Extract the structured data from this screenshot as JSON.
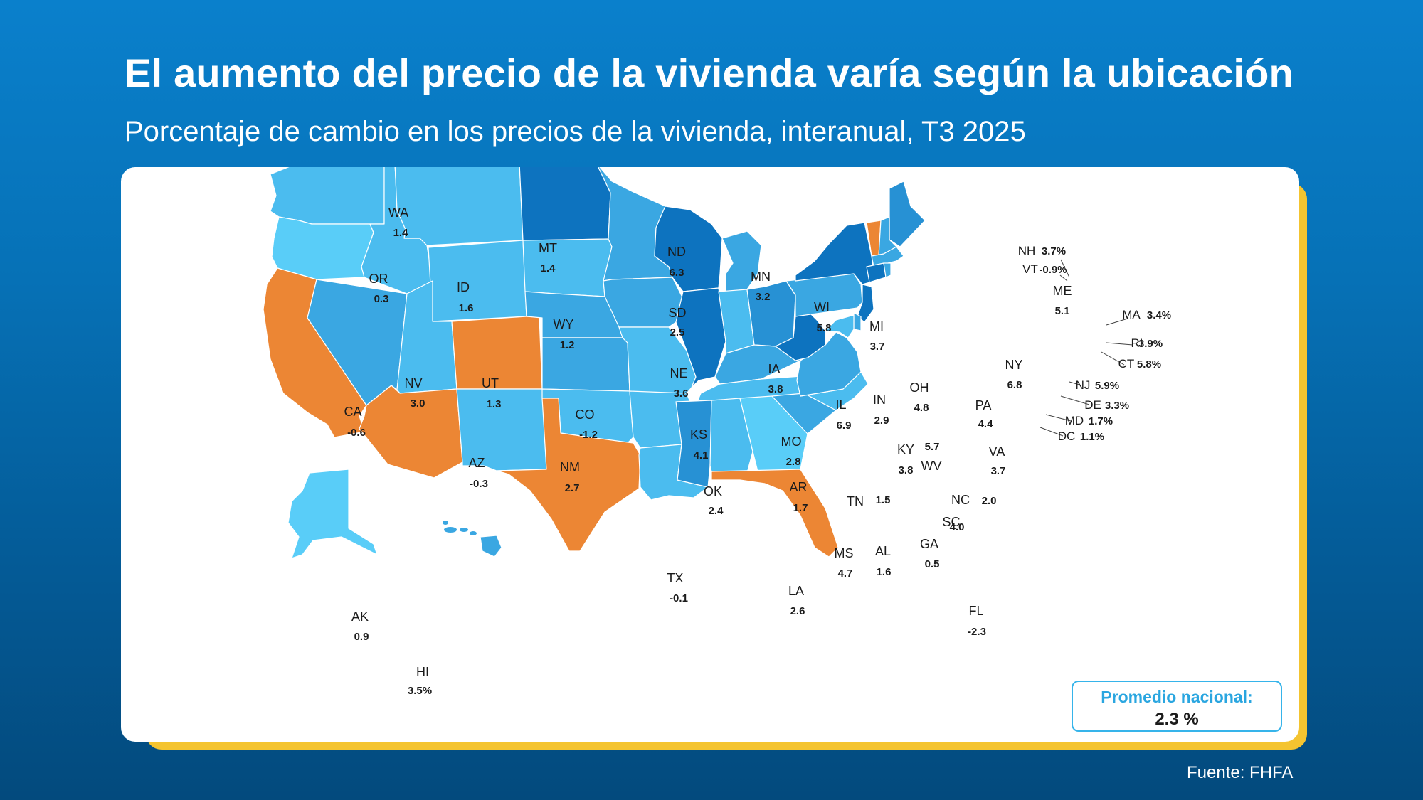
{
  "title": "El aumento del precio de la vivienda varía según la ubicación",
  "subtitle": "Porcentaje de cambio en los precios de la vivienda, interanual, T3 2025",
  "national_average": {
    "label": "Promedio nacional:",
    "value": "2.3 %"
  },
  "source": "Fuente: FHFA",
  "colors": {
    "negative": "#ec8634",
    "tier_0_1": "#59cdf8",
    "tier_1_3": "#4bbcef",
    "tier_3_4_5": "#3aa7e2",
    "tier_4_5_5_5": "#2791d4",
    "tier_5_5_plus": "#0d73bf"
  },
  "chart_data": {
    "type": "choropleth",
    "metric": "Porcentaje de cambio en los precios de la vivienda, interanual, T3 2025",
    "states": [
      {
        "abbr": "WA",
        "value": "1.4"
      },
      {
        "abbr": "OR",
        "value": "0.3"
      },
      {
        "abbr": "CA",
        "value": "-0.6"
      },
      {
        "abbr": "NV",
        "value": "3.0"
      },
      {
        "abbr": "ID",
        "value": "1.6"
      },
      {
        "abbr": "MT",
        "value": "1.4"
      },
      {
        "abbr": "WY",
        "value": "1.2"
      },
      {
        "abbr": "UT",
        "value": "1.3"
      },
      {
        "abbr": "AZ",
        "value": "-0.3"
      },
      {
        "abbr": "CO",
        "value": "-1.2"
      },
      {
        "abbr": "NM",
        "value": "2.7"
      },
      {
        "abbr": "ND",
        "value": "6.3"
      },
      {
        "abbr": "SD",
        "value": "2.5"
      },
      {
        "abbr": "NE",
        "value": "3.6"
      },
      {
        "abbr": "KS",
        "value": "4.1"
      },
      {
        "abbr": "OK",
        "value": "2.4"
      },
      {
        "abbr": "TX",
        "value": "-0.1"
      },
      {
        "abbr": "MN",
        "value": "3.2"
      },
      {
        "abbr": "IA",
        "value": "3.8"
      },
      {
        "abbr": "MO",
        "value": "2.8"
      },
      {
        "abbr": "AR",
        "value": "1.7"
      },
      {
        "abbr": "LA",
        "value": "2.6"
      },
      {
        "abbr": "WI",
        "value": "5.8"
      },
      {
        "abbr": "IL",
        "value": "6.9"
      },
      {
        "abbr": "MI",
        "value": "3.7"
      },
      {
        "abbr": "IN",
        "value": "2.9"
      },
      {
        "abbr": "OH",
        "value": "4.8"
      },
      {
        "abbr": "KY",
        "value": "3.8"
      },
      {
        "abbr": "TN",
        "value": "1.5"
      },
      {
        "abbr": "MS",
        "value": "4.7"
      },
      {
        "abbr": "AL",
        "value": "1.6"
      },
      {
        "abbr": "GA",
        "value": "0.5"
      },
      {
        "abbr": "FL",
        "value": "-2.3"
      },
      {
        "abbr": "SC",
        "value": "4.0"
      },
      {
        "abbr": "NC",
        "value": "2.0"
      },
      {
        "abbr": "VA",
        "value": "3.7"
      },
      {
        "abbr": "WV",
        "value": "5.7"
      },
      {
        "abbr": "PA",
        "value": "4.4"
      },
      {
        "abbr": "NY",
        "value": "6.8"
      },
      {
        "abbr": "ME",
        "value": "5.1"
      },
      {
        "abbr": "AK",
        "value": "0.9"
      },
      {
        "abbr": "HI",
        "value": "3.5%"
      },
      {
        "abbr": "NH",
        "value": "3.7%"
      },
      {
        "abbr": "VT",
        "value": "-0.9%"
      },
      {
        "abbr": "MA",
        "value": "3.4%"
      },
      {
        "abbr": "RI",
        "value": "3.9%"
      },
      {
        "abbr": "CT",
        "value": "5.8%"
      },
      {
        "abbr": "NJ",
        "value": "5.9%"
      },
      {
        "abbr": "DE",
        "value": "3.3%"
      },
      {
        "abbr": "MD",
        "value": "1.7%"
      },
      {
        "abbr": "DC",
        "value": "1.1%"
      }
    ]
  }
}
